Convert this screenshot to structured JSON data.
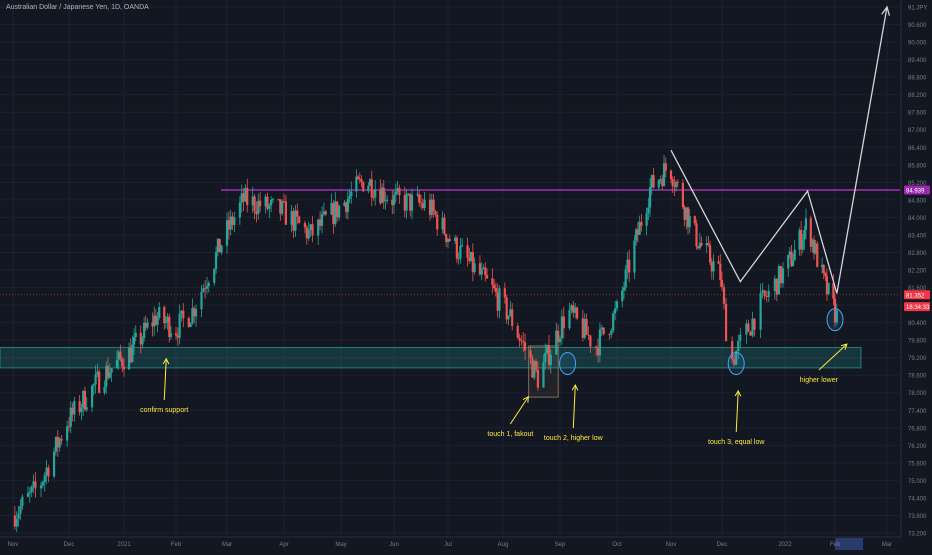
{
  "header": {
    "symbol_title": "Australian Dollar / Japanese Yen, 1D, OANDA"
  },
  "colors": {
    "background": "#131722",
    "grid": "#1c2030",
    "bull": "#26a69a",
    "bear": "#ef5350",
    "resistance": "#e040fb",
    "zone": "#26a69a",
    "projection": "#d1d4dc",
    "annotation": "#ffeb3b",
    "circle": "#42a5f5",
    "price_tag": "#f23645",
    "resistance_tag": "#9c27b0"
  },
  "chart_data": {
    "type": "candlestick",
    "title": "Australian Dollar / Japanese Yen, 1D, OANDA",
    "y_unit": "JPY",
    "ylim": [
      73.0,
      91.8
    ],
    "y_ticks": [
      "91.200",
      "90.600",
      "90.000",
      "89.400",
      "88.800",
      "88.200",
      "87.600",
      "87.000",
      "86.400",
      "85.800",
      "85.200",
      "84.600",
      "84.000",
      "83.400",
      "82.800",
      "82.200",
      "81.600",
      "81.000",
      "80.400",
      "79.800",
      "79.200",
      "78.600",
      "78.000",
      "77.400",
      "76.800",
      "76.200",
      "75.600",
      "75.000",
      "74.400",
      "73.800",
      "73.200"
    ],
    "x_labels": [
      "Nov",
      "Dec",
      "2021",
      "Feb",
      "Mar",
      "Apr",
      "May",
      "Jun",
      "Jul",
      "Aug",
      "Sep",
      "Oct",
      "Nov",
      "Dec",
      "2022",
      "Feb",
      "Mar"
    ],
    "x_label_dates": [
      "2020-11-01",
      "2020-12-01",
      "2021-01-01",
      "2021-02-01",
      "2021-03-01",
      "2021-04-01",
      "2021-05-01",
      "2021-06-01",
      "2021-07-01",
      "2021-08-01",
      "2021-09-01",
      "2021-10-01",
      "2021-11-01",
      "2021-12-01",
      "2022-01-01",
      "2022-02-01",
      "2022-03-01"
    ],
    "price_axis_unit_label": "JPY",
    "price_tags": [
      {
        "label": "84.939",
        "value": 84.939,
        "color": "#9c27b0"
      },
      {
        "label": "81.352",
        "value": 81.352,
        "color": "#f23645"
      },
      {
        "label": "16:34:33",
        "value": 81.05,
        "color": "#f23645"
      }
    ],
    "resistance_level": 84.939,
    "current_price": 81.352,
    "support_zone": {
      "low": 78.85,
      "high": 79.55,
      "start": "2020-11-01",
      "end": "2022-02-15"
    },
    "candles_anchor_path": [
      [
        "2020-11-01",
        73.8
      ],
      [
        "2020-11-15",
        74.8
      ],
      [
        "2020-11-30",
        77.0
      ],
      [
        "2020-12-20",
        78.6
      ],
      [
        "2021-01-05",
        79.4
      ],
      [
        "2021-01-20",
        80.6
      ],
      [
        "2021-02-01",
        80.2
      ],
      [
        "2021-02-10",
        80.8
      ],
      [
        "2021-02-28",
        83.4
      ],
      [
        "2021-03-10",
        84.6
      ],
      [
        "2021-03-31",
        84.2
      ],
      [
        "2021-04-15",
        83.4
      ],
      [
        "2021-05-01",
        84.4
      ],
      [
        "2021-05-15",
        85.3
      ],
      [
        "2021-06-01",
        84.6
      ],
      [
        "2021-06-20",
        84.4
      ],
      [
        "2021-07-05",
        83.0
      ],
      [
        "2021-07-25",
        81.6
      ],
      [
        "2021-08-05",
        80.6
      ],
      [
        "2021-08-20",
        78.5
      ],
      [
        "2021-09-05",
        80.8
      ],
      [
        "2021-09-20",
        79.6
      ],
      [
        "2021-10-01",
        80.8
      ],
      [
        "2021-10-20",
        85.0
      ],
      [
        "2021-10-31",
        85.8
      ],
      [
        "2021-11-15",
        83.4
      ],
      [
        "2021-11-30",
        82.0
      ],
      [
        "2021-12-05",
        79.0
      ],
      [
        "2021-12-20",
        81.0
      ],
      [
        "2022-01-05",
        82.6
      ],
      [
        "2022-01-15",
        83.8
      ],
      [
        "2022-01-25",
        81.8
      ],
      [
        "2022-02-02",
        80.6
      ]
    ],
    "projection_path": [
      [
        "2021-11-01",
        86.3
      ],
      [
        "2021-12-10",
        81.8
      ],
      [
        "2022-01-15",
        84.9
      ],
      [
        "2022-02-02",
        81.4
      ],
      [
        "2022-03-01",
        91.2
      ]
    ],
    "annotations": [
      {
        "text": "confirm support",
        "date": "2021-01-25",
        "arrow_to": 79.3
      },
      {
        "text": "touch 1, fakout",
        "date": "2021-08-05",
        "arrow_to": 78.0
      },
      {
        "text": "touch 2, higher low",
        "date": "2021-09-08",
        "arrow_to": 78.4
      },
      {
        "text": "touch 3, equal low",
        "date": "2021-12-08",
        "arrow_to": 78.2
      },
      {
        "text": "higher lower",
        "date": "2022-01-22",
        "arrow_to": 79.8
      }
    ],
    "circled_lows": [
      {
        "date": "2021-09-05",
        "value": 79.0
      },
      {
        "date": "2021-12-08",
        "value": 79.0
      },
      {
        "date": "2022-02-01",
        "value": 80.5
      }
    ],
    "fakeout_box": {
      "start": "2021-08-15",
      "end": "2021-08-31",
      "low": 77.85,
      "high": 79.6
    }
  }
}
